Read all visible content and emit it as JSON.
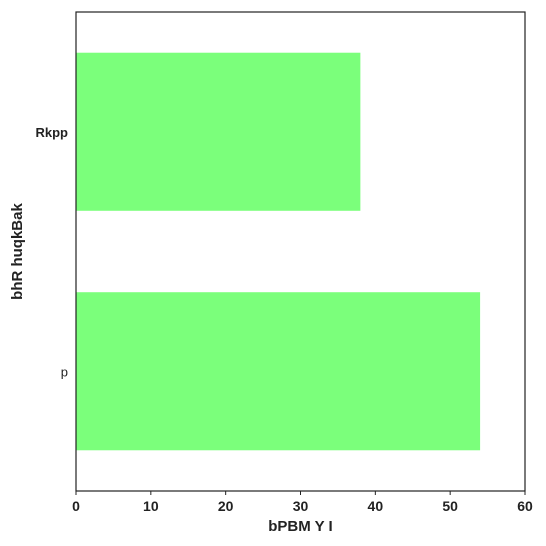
{
  "chart_data": {
    "type": "bar",
    "orientation": "horizontal",
    "categories": [
      "Rkpp",
      "p"
    ],
    "values": [
      38,
      54
    ],
    "bold_categories": [
      "Rkpp"
    ],
    "xlabel": "bPBM Y I",
    "ylabel": "bhR huqkBak",
    "xlim": [
      0,
      60
    ],
    "xticks": [
      "0",
      "10",
      "20",
      "30",
      "40",
      "50",
      "60"
    ],
    "grid": false,
    "bar_color": "#7bff7b",
    "frame_color": "#222222"
  }
}
